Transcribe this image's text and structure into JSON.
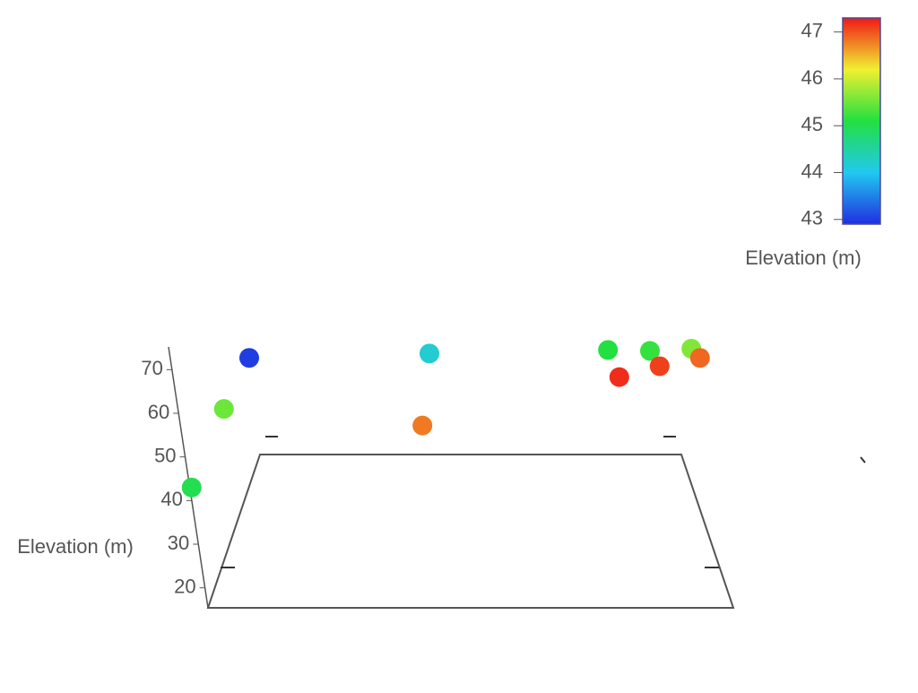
{
  "chart_data": {
    "type": "scatter3d",
    "z_axis_title": "Elevation (m)",
    "colorbar_title": "Elevation (m)",
    "x": [
      2.3,
      8.3,
      13,
      45.2,
      46.5,
      79.7,
      81.8,
      87.5,
      89.3,
      95.2,
      96.8
    ],
    "values": [
      43,
      61,
      72.7,
      57.2,
      73.7,
      74.5,
      68.3,
      74.3,
      70.8,
      74.8,
      72.7
    ],
    "color_values": [
      45.0,
      45.5,
      43.0,
      46.8,
      44.2,
      45.1,
      47.2,
      45.2,
      47.1,
      45.6,
      46.9
    ],
    "xlim": [
      0,
      100
    ],
    "zlim": [
      15,
      75
    ],
    "zticks": [
      20,
      30,
      40,
      50,
      60,
      70
    ],
    "clim": [
      42.9,
      47.3
    ],
    "cticks": [
      43,
      44,
      45,
      46,
      47
    ],
    "colorscale": [
      "#1f2fe0",
      "#22c8f0",
      "#22e040",
      "#f0f030",
      "#f01818"
    ]
  }
}
